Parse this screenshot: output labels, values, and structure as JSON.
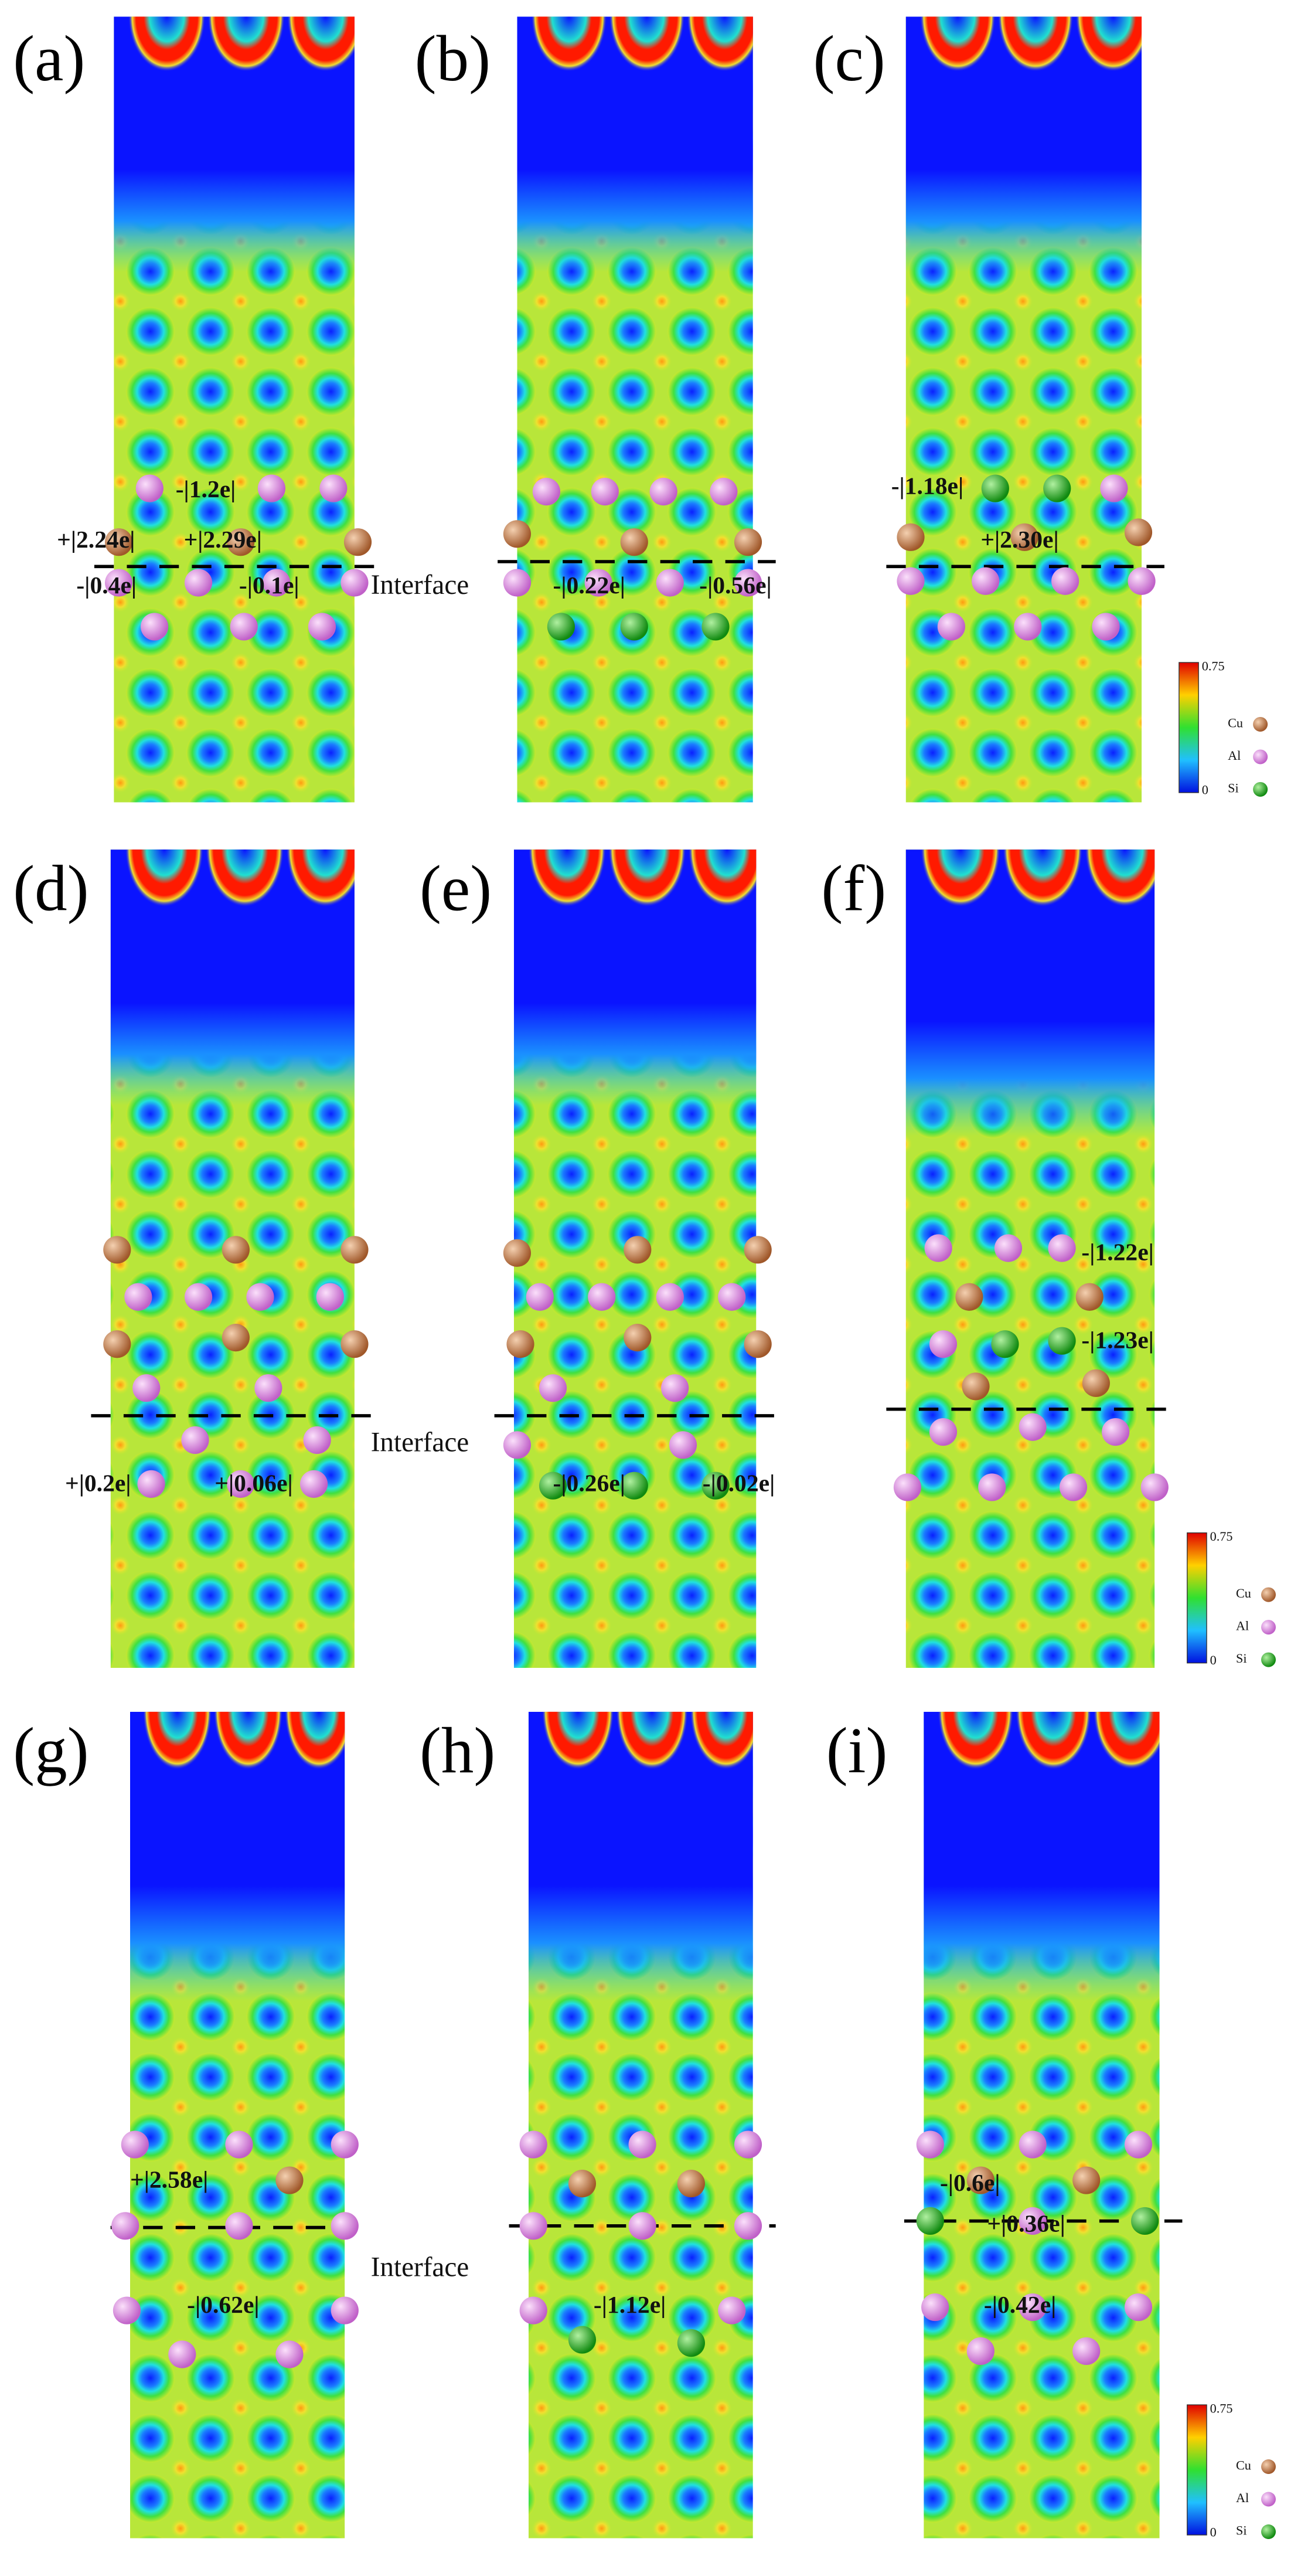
{
  "panels": [
    {
      "label": "(a)",
      "annotations": [
        "-|1.2e|",
        "+|2.24e|",
        "+|2.29e|",
        "-|0.4e|",
        "-|0.1e|"
      ]
    },
    {
      "label": "(b)",
      "annotations": [
        "-|0.22e|",
        "-|0.56e|"
      ]
    },
    {
      "label": "(c)",
      "annotations": [
        "-|1.18e|",
        "+|2.30e|"
      ]
    },
    {
      "label": "(d)",
      "annotations": [
        "+|0.2e|",
        "+|0.06e|"
      ]
    },
    {
      "label": "(e)",
      "annotations": [
        "-|0.26e|",
        "-|0.02e|"
      ]
    },
    {
      "label": "(f)",
      "annotations": [
        "-|1.22e|",
        "-|1.23e|"
      ]
    },
    {
      "label": "(g)",
      "annotations": [
        "+|2.58e|",
        "-|0.62e|"
      ]
    },
    {
      "label": "(h)",
      "annotations": [
        "-|1.12e|"
      ]
    },
    {
      "label": "(i)",
      "annotations": [
        "-|0.6e|",
        "+|0.36e|",
        "-|0.42e|"
      ]
    }
  ],
  "interface_labels": [
    "Interface",
    "Interface",
    "Interface"
  ],
  "colorbars": [
    {
      "max": "0.75",
      "min": "0",
      "legend": [
        "Cu",
        "Al",
        "Si"
      ]
    },
    {
      "max": "0.75",
      "min": "0",
      "legend": [
        "Cu",
        "Al",
        "Si"
      ]
    },
    {
      "max": "0.75",
      "min": "0",
      "legend": [
        "Cu",
        "Al",
        "Si"
      ]
    }
  ]
}
